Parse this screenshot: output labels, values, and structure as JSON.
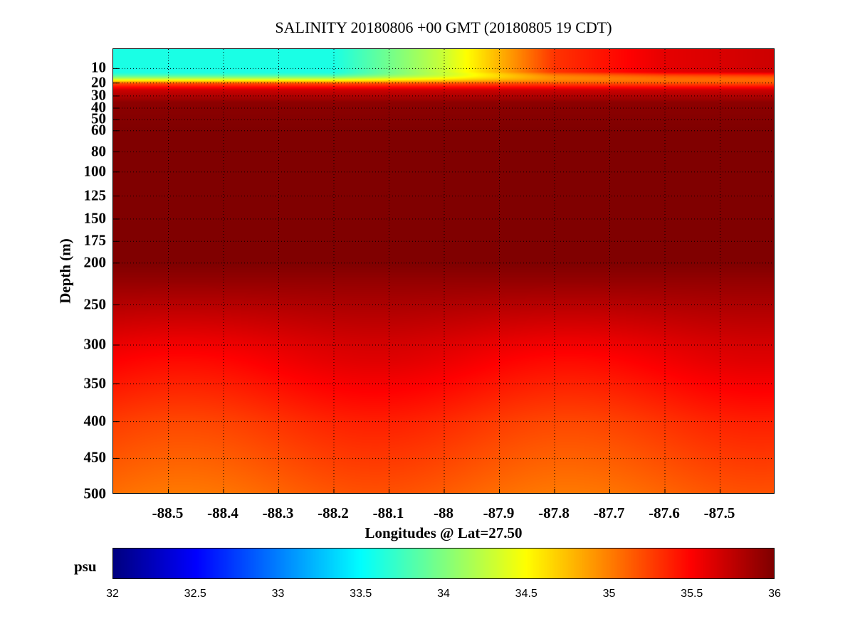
{
  "chart_data": {
    "type": "heatmap",
    "title": "SALINITY 20180806 +00 GMT (20180805 19 CDT)",
    "xlabel": "Longitudes @ Lat=27.50",
    "ylabel": "Depth (m)",
    "xlim": [
      -88.6,
      -87.4
    ],
    "ylim": [
      500,
      0
    ],
    "x_ticks": [
      -88.5,
      -88.4,
      -88.3,
      -88.2,
      -88.1,
      -88,
      -87.9,
      -87.8,
      -87.7,
      -87.6,
      -87.5
    ],
    "x_tick_labels": [
      "-88.5",
      "-88.4",
      "-88.3",
      "-88.2",
      "-88.1",
      "-88",
      "-87.9",
      "-87.8",
      "-87.7",
      "-87.6",
      "-87.5"
    ],
    "y_ticks": [
      10,
      20,
      30,
      40,
      50,
      60,
      80,
      100,
      125,
      150,
      175,
      200,
      250,
      300,
      350,
      400,
      450,
      500
    ],
    "y_tick_labels": [
      "10",
      "20",
      "30",
      "40",
      "50",
      "60",
      "80",
      "100",
      "125",
      "150",
      "175",
      "200",
      "250",
      "300",
      "350",
      "400",
      "450",
      "500"
    ],
    "grid": true,
    "colorbar": {
      "label": "psu",
      "range": [
        32,
        36
      ],
      "colormap": "jet",
      "ticks": [
        32,
        32.5,
        33,
        33.5,
        34,
        34.5,
        35,
        35.5,
        36
      ],
      "tick_labels": [
        "32",
        "32.5",
        "33",
        "33.5",
        "34",
        "34.5",
        "35",
        "35.5",
        "36"
      ]
    },
    "depth_profile_salinity": [
      {
        "depth": 0,
        "psu": 33.6
      },
      {
        "depth": 10,
        "psu": 33.6
      },
      {
        "depth": 16,
        "psu": 34.6
      },
      {
        "depth": 20,
        "psu": 35.2
      },
      {
        "depth": 25,
        "psu": 35.7
      },
      {
        "depth": 35,
        "psu": 35.95
      },
      {
        "depth": 60,
        "psu": 36.0
      },
      {
        "depth": 200,
        "psu": 36.0
      },
      {
        "depth": 250,
        "psu": 35.8
      },
      {
        "depth": 300,
        "psu": 35.6
      },
      {
        "depth": 350,
        "psu": 35.45
      },
      {
        "depth": 400,
        "psu": 35.3
      },
      {
        "depth": 450,
        "psu": 35.2
      },
      {
        "depth": 500,
        "psu": 35.1
      }
    ],
    "surface_salinity_by_longitude": [
      {
        "lon": -88.6,
        "psu": 33.6
      },
      {
        "lon": -88.2,
        "psu": 33.6
      },
      {
        "lon": -88.0,
        "psu": 34.3
      },
      {
        "lon": -87.8,
        "psu": 35.3
      },
      {
        "lon": -87.6,
        "psu": 35.6
      },
      {
        "lon": -87.4,
        "psu": 35.7
      }
    ]
  }
}
